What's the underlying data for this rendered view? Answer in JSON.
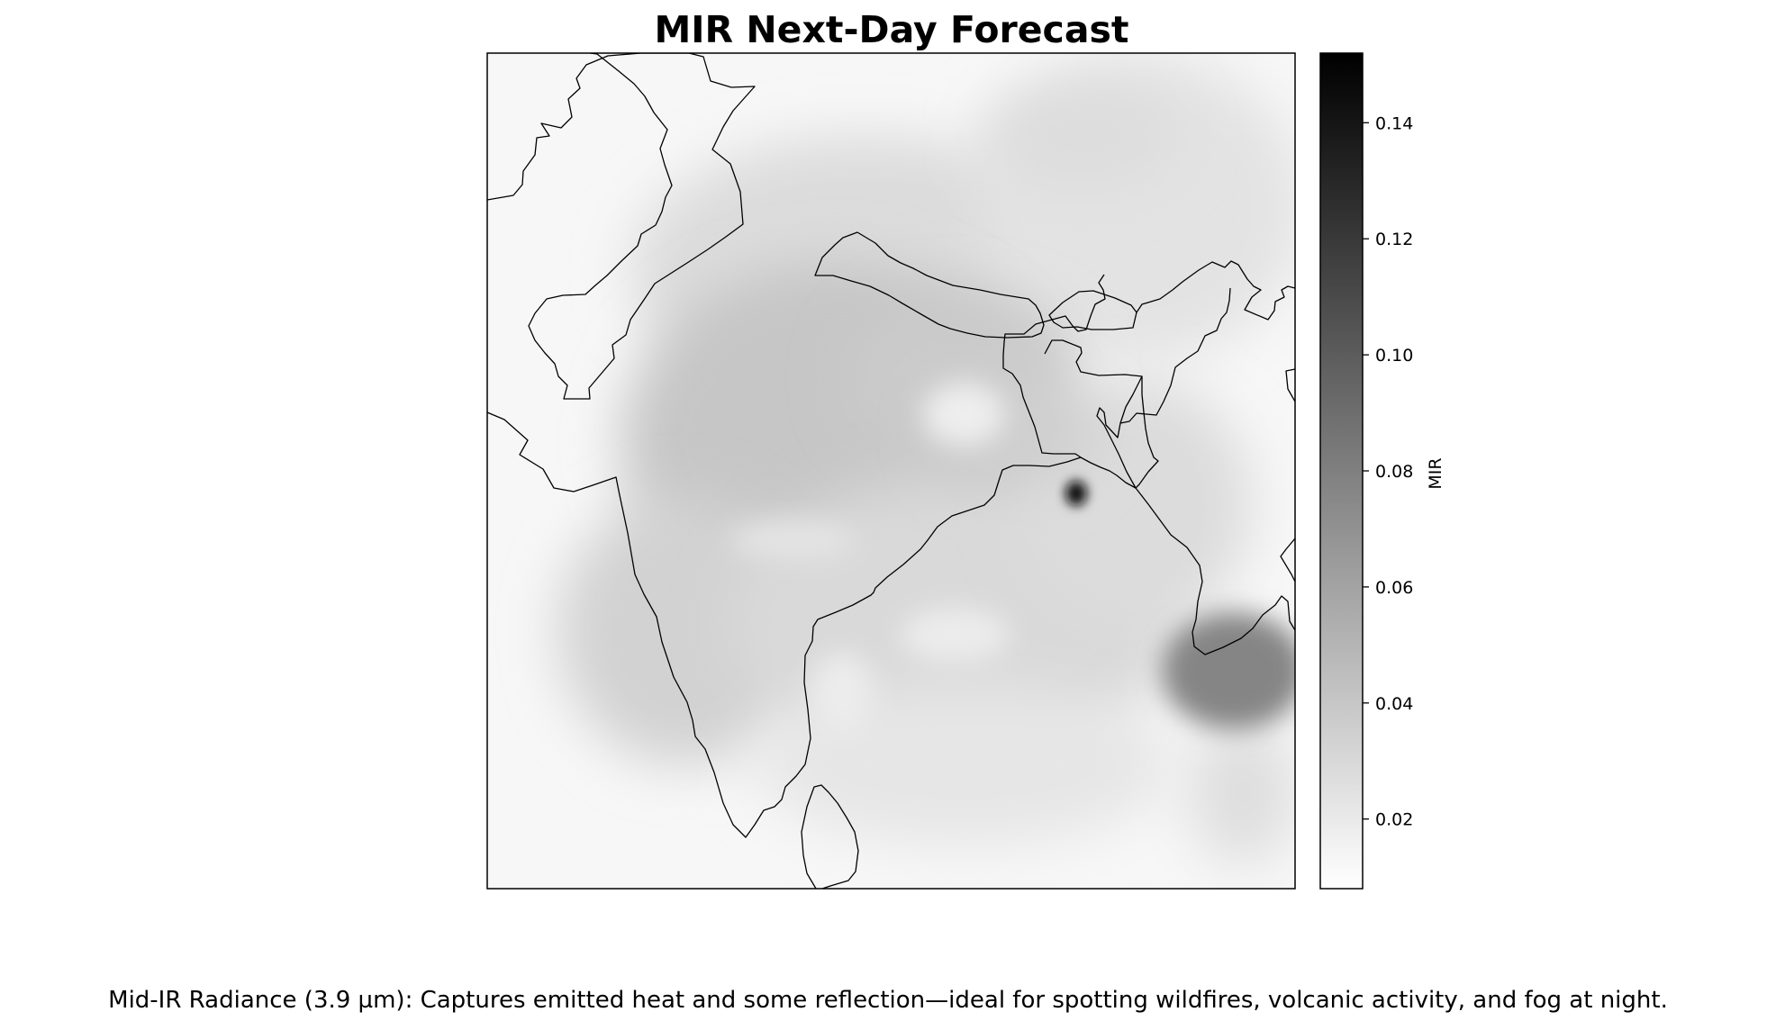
{
  "title": "MIR Next-Day Forecast",
  "colorbar": {
    "label": "MIR",
    "colormap": "gray_r",
    "min": 0.008,
    "max": 0.152,
    "ticks": [
      "0.02",
      "0.04",
      "0.06",
      "0.08",
      "0.10",
      "0.12",
      "0.14"
    ]
  },
  "caption": "Mid-IR Radiance (3.9 µm): Captures emitted heat and some reflection—ideal for spotting wildfires, volcanic activity, and fog at night.",
  "colors": {
    "background": "#ffffff",
    "coastline": "#000000",
    "colormap_low": "#ffffff",
    "colormap_high": "#000000"
  }
}
